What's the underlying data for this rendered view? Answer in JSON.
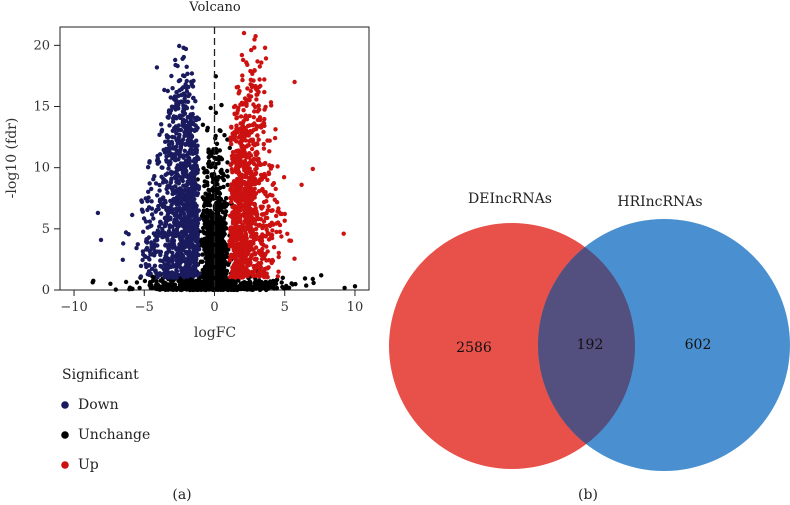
{
  "chart_data": [
    {
      "type": "scatter",
      "title": "Volcano",
      "xlabel": "logFC",
      "ylabel": "-log10 (fdr)",
      "xlim": [
        -11,
        11
      ],
      "ylim": [
        0,
        21.5
      ],
      "xticks": [
        "−10",
        "−5",
        "0",
        "5",
        "10"
      ],
      "yticks": [
        "0",
        "5",
        "10",
        "15",
        "20"
      ],
      "xtick_values": [
        -10,
        -5,
        0,
        5,
        10
      ],
      "ytick_values": [
        0,
        5,
        10,
        15,
        20
      ],
      "vline_x": 0,
      "legend": {
        "title": "Significant",
        "entries": [
          {
            "label": "Down",
            "color": "#1a1a5e"
          },
          {
            "label": "Unchange",
            "color": "#000000"
          },
          {
            "label": "Up",
            "color": "#cc1111"
          }
        ]
      },
      "series": [
        {
          "name": "Down",
          "color": "#1a1a5e",
          "approx_count": 1200
        },
        {
          "name": "Unchange",
          "color": "#000000",
          "approx_count": 1400
        },
        {
          "name": "Up",
          "color": "#cc1111",
          "approx_count": 1000
        }
      ],
      "notable_points": {
        "Down": [
          [
            -8.3,
            6.3
          ],
          [
            -6.5,
            3.8
          ],
          [
            -6.3,
            4.7
          ],
          [
            -2.2,
            19.8
          ],
          [
            -2.8,
            18.8
          ],
          [
            -4.1,
            18.2
          ]
        ],
        "Up": [
          [
            2.1,
            21.0
          ],
          [
            3.6,
            19.8
          ],
          [
            5.7,
            17.0
          ],
          [
            7.0,
            9.9
          ],
          [
            9.2,
            4.6
          ],
          [
            6.2,
            8.6
          ]
        ],
        "Unchange": [
          [
            10.0,
            0.3
          ],
          [
            7.6,
            1.2
          ],
          [
            7.0,
            0.9
          ],
          [
            -4.5,
            0.4
          ]
        ]
      },
      "panel_label": "(a)"
    },
    {
      "type": "venn",
      "sets": [
        {
          "name": "DElncRNAs",
          "label": "DEIncRNAs",
          "color": "#e8504a",
          "only": 2586
        },
        {
          "name": "HRlncRNAs",
          "label": "HRIncRNAs",
          "color": "#4a90d0",
          "only": 602
        }
      ],
      "intersection": 192,
      "intersection_color": "#535080",
      "panel_label": "(b)"
    }
  ]
}
